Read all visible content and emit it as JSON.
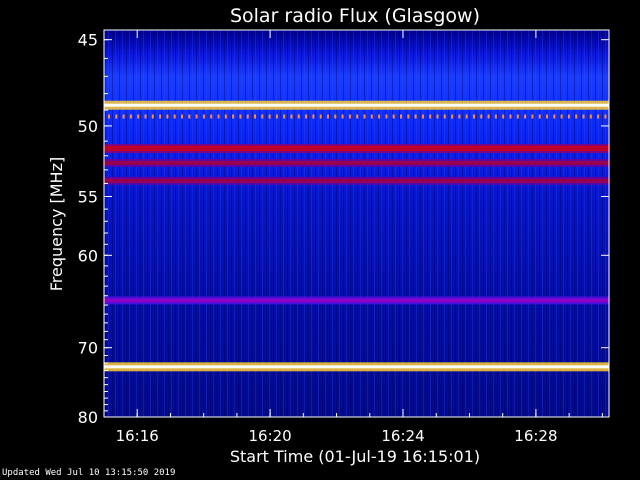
{
  "chart_data": {
    "type": "heatmap",
    "title": "Solar radio Flux (Glasgow)",
    "xlabel": "Start Time (01-Jul-19 16:15:01)",
    "ylabel": "Frequency [MHz]",
    "x_range_minutes": [
      15.0,
      30.2
    ],
    "x_ticks": [
      {
        "label": "16:16",
        "minute": 16
      },
      {
        "label": "16:20",
        "minute": 20
      },
      {
        "label": "16:24",
        "minute": 24
      },
      {
        "label": "16:28",
        "minute": 28
      }
    ],
    "y_range_mhz": [
      80,
      44.5
    ],
    "y_ticks": [
      45,
      50,
      55,
      60,
      70,
      80
    ],
    "y_scale": "reciprocal",
    "colormap": "dark blue to bright blue to red to yellow to white",
    "features": [
      {
        "frequency_mhz": 48.7,
        "level": "white",
        "note": "strong narrow interference line"
      },
      {
        "frequency_mhz": 49.4,
        "level": "orange",
        "note": "periodic dotted line"
      },
      {
        "frequency_mhz": 51.5,
        "level": "red"
      },
      {
        "frequency_mhz": 52.5,
        "level": "dark red"
      },
      {
        "frequency_mhz": 53.8,
        "level": "dark red"
      },
      {
        "frequency_mhz": 64.5,
        "level": "purple"
      },
      {
        "frequency_mhz": 72.5,
        "level": "white",
        "note": "strong narrow interference line"
      }
    ]
  },
  "footer": {
    "updated": "Updated Wed Jul 10 13:15:50 2019"
  }
}
